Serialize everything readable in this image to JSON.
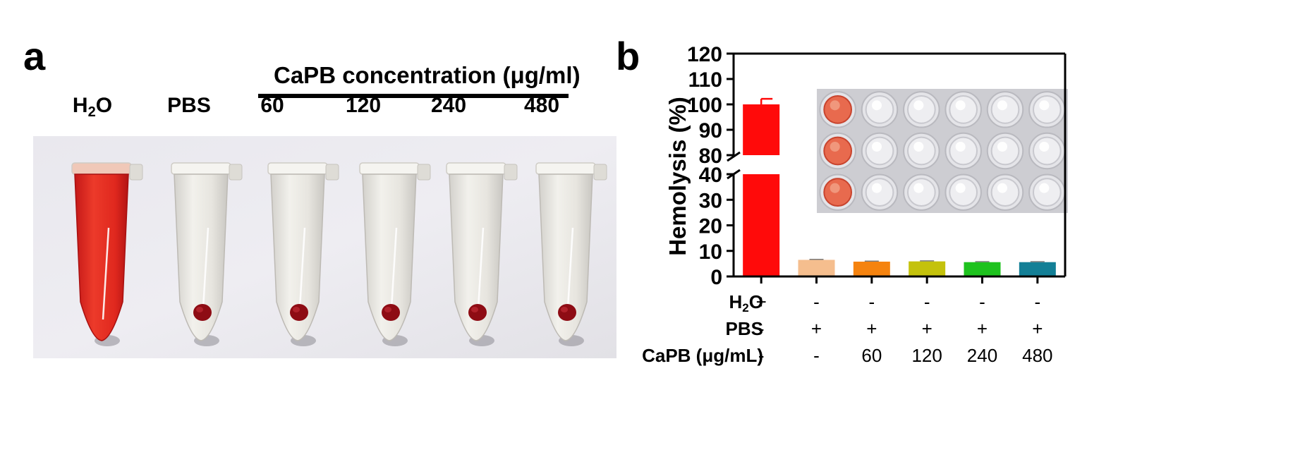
{
  "panel_a": {
    "letter": "a",
    "concentration_title": "CaPB concentration (μg/ml)",
    "tube_labels": [
      {
        "main": "H",
        "sub": "2",
        "tail": "O"
      },
      {
        "main": "PBS",
        "sub": "",
        "tail": ""
      },
      {
        "main": "60",
        "sub": "",
        "tail": ""
      },
      {
        "main": "120",
        "sub": "",
        "tail": ""
      },
      {
        "main": "240",
        "sub": "",
        "tail": ""
      },
      {
        "main": "480",
        "sub": "",
        "tail": ""
      }
    ],
    "tubes": [
      {
        "liquid": "red",
        "pellet": false
      },
      {
        "liquid": "clear",
        "pellet": true
      },
      {
        "liquid": "clear",
        "pellet": true
      },
      {
        "liquid": "clear",
        "pellet": true
      },
      {
        "liquid": "clear",
        "pellet": true
      },
      {
        "liquid": "clear",
        "pellet": true
      }
    ]
  },
  "panel_b": {
    "letter": "b",
    "inset_wells": {
      "rows": 3,
      "cols": 6,
      "red_columns": [
        0
      ]
    }
  },
  "chart_data": {
    "type": "bar",
    "title": "",
    "ylabel": "Hemolysis (%)",
    "xlabel": "",
    "ylim": [
      0,
      120
    ],
    "axis_break": [
      40,
      80
    ],
    "lower_ticks": [
      0,
      10,
      20,
      30,
      40
    ],
    "upper_ticks": [
      80,
      90,
      100,
      110,
      120
    ],
    "categories": [
      "H2O",
      "PBS",
      "60",
      "120",
      "240",
      "480"
    ],
    "values": [
      100,
      6.5,
      5.8,
      5.9,
      5.6,
      5.6
    ],
    "errors": [
      2.2,
      0.2,
      0.2,
      0.2,
      0.2,
      0.2
    ],
    "colors": [
      "#ff0a0a",
      "#f5be8e",
      "#f5830f",
      "#c4c20c",
      "#1ec21e",
      "#137f96"
    ],
    "condition_rows": [
      {
        "label": {
          "main": "H",
          "sub": "2",
          "tail": "O"
        },
        "values": [
          "+",
          "-",
          "-",
          "-",
          "-",
          "-"
        ]
      },
      {
        "label": {
          "main": "PBS",
          "sub": "",
          "tail": ""
        },
        "values": [
          "-",
          "+",
          "+",
          "+",
          "+",
          "+"
        ]
      },
      {
        "label": {
          "main": "CaPB (μg/mL)",
          "sub": "",
          "tail": ""
        },
        "values": [
          "-",
          "-",
          "60",
          "120",
          "240",
          "480"
        ]
      }
    ]
  }
}
